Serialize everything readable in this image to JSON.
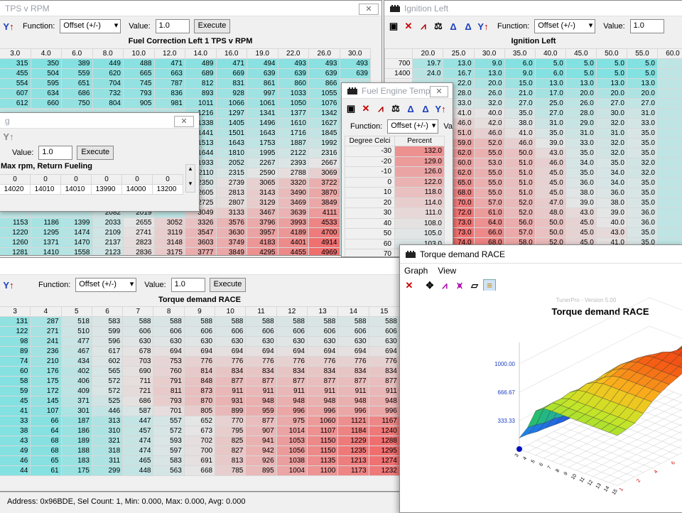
{
  "common": {
    "function_label": "Function:",
    "function_value": "Offset (+/-)",
    "value_label": "Value:",
    "value_value": "1.0",
    "execute": "Execute",
    "function_label_short": "Function:",
    "va_label": "Va"
  },
  "fuel_corr": {
    "window_title": "TPS v RPM",
    "map_title": "Fuel Correction Left 1 TPS v RPM",
    "cols": [
      "3.0",
      "4.0",
      "6.0",
      "8.0",
      "10.0",
      "12.0",
      "14.0",
      "16.0",
      "19.0",
      "22.0",
      "26.0",
      "30.0"
    ],
    "rows": [
      [
        "315",
        "350",
        "389",
        "449",
        "488",
        "471",
        "489",
        "471",
        "494",
        "493",
        "493",
        "493"
      ],
      [
        "455",
        "504",
        "559",
        "620",
        "665",
        "663",
        "689",
        "669",
        "639",
        "639",
        "639",
        "639"
      ],
      [
        "554",
        "595",
        "651",
        "704",
        "745",
        "787",
        "812",
        "831",
        "861",
        "860",
        "866",
        ""
      ],
      [
        "607",
        "634",
        "686",
        "732",
        "793",
        "836",
        "893",
        "928",
        "997",
        "1033",
        "1055",
        ""
      ],
      [
        "612",
        "660",
        "750",
        "804",
        "905",
        "981",
        "1011",
        "1066",
        "1061",
        "1050",
        "1076",
        ""
      ],
      [
        "",
        "",
        "",
        "",
        "",
        "",
        "1216",
        "1297",
        "1341",
        "1377",
        "1342",
        ""
      ],
      [
        "",
        "",
        "",
        "",
        "",
        "",
        "1338",
        "1405",
        "1496",
        "1610",
        "1627",
        ""
      ],
      [
        "",
        "",
        "",
        "",
        "",
        "",
        "1441",
        "1501",
        "1643",
        "1716",
        "1845",
        ""
      ],
      [
        "",
        "",
        "",
        "",
        "",
        "",
        "1513",
        "1643",
        "1753",
        "1887",
        "1992",
        ""
      ],
      [
        "",
        "",
        "",
        "",
        "",
        "",
        "1644",
        "1810",
        "1995",
        "2122",
        "2316",
        ""
      ],
      [
        "",
        "",
        "",
        "",
        "",
        "",
        "1933",
        "2052",
        "2267",
        "2393",
        "2667",
        ""
      ],
      [
        "",
        "",
        "",
        "",
        "",
        "",
        "2110",
        "2315",
        "2590",
        "2788",
        "3069",
        ""
      ],
      [
        "",
        "",
        "",
        "",
        "",
        "",
        "2350",
        "2739",
        "3065",
        "3320",
        "3722",
        ""
      ],
      [
        "",
        "",
        "",
        "",
        "",
        "",
        "2605",
        "2813",
        "3143",
        "3490",
        "3870",
        ""
      ],
      [
        "",
        "",
        "",
        "",
        "",
        "",
        "2725",
        "2807",
        "3129",
        "3469",
        "3849",
        ""
      ],
      [
        "",
        "",
        "",
        "2082",
        "2019",
        "",
        "3049",
        "3133",
        "3467",
        "3639",
        "4111",
        ""
      ],
      [
        "1153",
        "1186",
        "1399",
        "2033",
        "2655",
        "3052",
        "3326",
        "3576",
        "3796",
        "3993",
        "4533",
        ""
      ],
      [
        "1220",
        "1295",
        "1474",
        "2109",
        "2741",
        "3119",
        "3547",
        "3630",
        "3957",
        "4189",
        "4700",
        ""
      ],
      [
        "1260",
        "1371",
        "1470",
        "2137",
        "2823",
        "3148",
        "3603",
        "3749",
        "4183",
        "4401",
        "4914",
        ""
      ],
      [
        "1281",
        "1410",
        "1558",
        "2123",
        "2836",
        "3175",
        "3777",
        "3849",
        "4295",
        "4455",
        "4969",
        ""
      ]
    ]
  },
  "small_win": {
    "window_title": "g",
    "map_title": "Max rpm, Return Fueling",
    "header": [
      "0",
      "0",
      "0",
      "0",
      "0",
      "0"
    ],
    "values": [
      "14020",
      "14010",
      "14010",
      "13990",
      "14000",
      "13200"
    ]
  },
  "ign": {
    "window_title": "Ignition Left",
    "map_title": "Ignition Left",
    "cols": [
      "20.0",
      "25.0",
      "30.0",
      "35.0",
      "40.0",
      "45.0",
      "50.0",
      "55.0",
      "60.0"
    ],
    "rowlabels": [
      "700",
      "1400"
    ],
    "rows": [
      [
        "19.7",
        "13.0",
        "9.0",
        "6.0",
        "5.0",
        "5.0",
        "5.0",
        "5.0",
        ""
      ],
      [
        "24.0",
        "16.7",
        "13.0",
        "9.0",
        "6.0",
        "5.0",
        "5.0",
        "5.0",
        ""
      ],
      [
        "",
        "22.0",
        "20.0",
        "15.0",
        "13.0",
        "13.0",
        "13.0",
        "13.0",
        ""
      ],
      [
        "",
        "28.0",
        "26.0",
        "21.0",
        "17.0",
        "20.0",
        "20.0",
        "20.0",
        ""
      ],
      [
        "",
        "33.0",
        "32.0",
        "27.0",
        "25.0",
        "26.0",
        "27.0",
        "27.0",
        ""
      ],
      [
        "",
        "41.0",
        "40.0",
        "35.0",
        "27.0",
        "28.0",
        "30.0",
        "31.0",
        ""
      ],
      [
        "",
        "46.0",
        "42.0",
        "38.0",
        "31.0",
        "29.0",
        "32.0",
        "33.0",
        ""
      ],
      [
        "",
        "51.0",
        "46.0",
        "41.0",
        "35.0",
        "31.0",
        "31.0",
        "35.0",
        ""
      ],
      [
        "",
        "59.0",
        "52.0",
        "46.0",
        "39.0",
        "33.0",
        "32.0",
        "35.0",
        ""
      ],
      [
        "",
        "62.0",
        "55.0",
        "50.0",
        "43.0",
        "35.0",
        "32.0",
        "35.0",
        ""
      ],
      [
        "",
        "60.0",
        "53.0",
        "51.0",
        "46.0",
        "34.0",
        "35.0",
        "32.0",
        ""
      ],
      [
        "",
        "62.0",
        "55.0",
        "51.0",
        "45.0",
        "35.0",
        "34.0",
        "32.0",
        ""
      ],
      [
        "",
        "65.0",
        "55.0",
        "51.0",
        "45.0",
        "36.0",
        "34.0",
        "35.0",
        ""
      ],
      [
        "",
        "68.0",
        "55.0",
        "51.0",
        "45.0",
        "38.0",
        "36.0",
        "35.0",
        ""
      ],
      [
        "",
        "70.0",
        "57.0",
        "52.0",
        "47.0",
        "39.0",
        "38.0",
        "35.0",
        ""
      ],
      [
        "",
        "72.0",
        "61.0",
        "52.0",
        "48.0",
        "43.0",
        "39.0",
        "36.0",
        ""
      ],
      [
        "",
        "73.0",
        "64.0",
        "56.0",
        "50.0",
        "45.0",
        "40.0",
        "36.0",
        ""
      ],
      [
        "",
        "73.0",
        "66.0",
        "57.0",
        "50.0",
        "45.0",
        "43.0",
        "35.0",
        ""
      ],
      [
        "",
        "74.0",
        "68.0",
        "58.0",
        "52.0",
        "45.0",
        "41.0",
        "35.0",
        ""
      ],
      [
        "",
        "74.0",
        "69.0",
        "59.0",
        "54.0",
        "46.0",
        "41.0",
        "38.0",
        ""
      ]
    ]
  },
  "fuel_temp": {
    "window_title": "Fuel Engine Temp",
    "col1": "Degree Celci",
    "col2": "Percent",
    "rows": [
      [
        "-30",
        "132.0"
      ],
      [
        "-20",
        "129.0"
      ],
      [
        "-10",
        "126.0"
      ],
      [
        "0",
        "122.0"
      ],
      [
        "10",
        "118.0"
      ],
      [
        "20",
        "114.0"
      ],
      [
        "30",
        "111.0"
      ],
      [
        "40",
        "108.0"
      ],
      [
        "50",
        "105.0"
      ],
      [
        "60",
        "103.0"
      ],
      [
        "70",
        ""
      ]
    ]
  },
  "torque": {
    "map_title": "Torque demand RACE",
    "cols": [
      "3",
      "4",
      "5",
      "6",
      "7",
      "8",
      "9",
      "10",
      "11",
      "12",
      "13",
      "14",
      "15"
    ],
    "rows": [
      [
        "131",
        "287",
        "518",
        "583",
        "588",
        "588",
        "588",
        "588",
        "588",
        "588",
        "588",
        "588",
        "588"
      ],
      [
        "122",
        "271",
        "510",
        "599",
        "606",
        "606",
        "606",
        "606",
        "606",
        "606",
        "606",
        "606",
        "606"
      ],
      [
        "98",
        "241",
        "477",
        "596",
        "630",
        "630",
        "630",
        "630",
        "630",
        "630",
        "630",
        "630",
        "630"
      ],
      [
        "89",
        "236",
        "467",
        "617",
        "678",
        "694",
        "694",
        "694",
        "694",
        "694",
        "694",
        "694",
        "694"
      ],
      [
        "74",
        "210",
        "434",
        "602",
        "703",
        "753",
        "776",
        "776",
        "776",
        "776",
        "776",
        "776",
        "776"
      ],
      [
        "60",
        "176",
        "402",
        "565",
        "690",
        "760",
        "814",
        "834",
        "834",
        "834",
        "834",
        "834",
        "834"
      ],
      [
        "58",
        "175",
        "406",
        "572",
        "711",
        "791",
        "848",
        "877",
        "877",
        "877",
        "877",
        "877",
        "877"
      ],
      [
        "59",
        "172",
        "409",
        "572",
        "721",
        "811",
        "873",
        "911",
        "911",
        "911",
        "911",
        "911",
        "911"
      ],
      [
        "45",
        "145",
        "371",
        "525",
        "686",
        "793",
        "870",
        "931",
        "948",
        "948",
        "948",
        "948",
        "948"
      ],
      [
        "41",
        "107",
        "301",
        "446",
        "587",
        "701",
        "805",
        "899",
        "959",
        "996",
        "996",
        "996",
        "996"
      ],
      [
        "33",
        "66",
        "187",
        "313",
        "447",
        "557",
        "652",
        "770",
        "877",
        "975",
        "1060",
        "1121",
        "1167"
      ],
      [
        "38",
        "64",
        "186",
        "310",
        "457",
        "572",
        "673",
        "795",
        "907",
        "1014",
        "1107",
        "1184",
        "1240"
      ],
      [
        "43",
        "68",
        "189",
        "321",
        "474",
        "593",
        "702",
        "825",
        "941",
        "1053",
        "1150",
        "1229",
        "1288"
      ],
      [
        "49",
        "68",
        "188",
        "318",
        "474",
        "597",
        "700",
        "827",
        "942",
        "1056",
        "1150",
        "1235",
        "1295"
      ],
      [
        "46",
        "65",
        "183",
        "311",
        "465",
        "583",
        "691",
        "813",
        "926",
        "1038",
        "1135",
        "1213",
        "1274"
      ],
      [
        "44",
        "61",
        "175",
        "299",
        "448",
        "563",
        "668",
        "785",
        "895",
        "1004",
        "1100",
        "1173",
        "1232"
      ]
    ]
  },
  "graph": {
    "window_title": "Torque demand RACE",
    "menu_graph": "Graph",
    "menu_view": "View",
    "watermark": "TunerPro - Version 5.00",
    "title": "Torque demand RACE",
    "zlabels": [
      "1000.00",
      "666.67",
      "333.33"
    ],
    "xticks": [
      "3",
      "4",
      "5",
      "6",
      "7",
      "8",
      "9",
      "10",
      "11",
      "12",
      "13",
      "14",
      "15"
    ],
    "yticks": [
      "1",
      "2",
      "4",
      "6",
      "8",
      "10",
      "12",
      "14"
    ]
  },
  "status": {
    "text": "Address: 0x96BDE, Sel Count: 1, Min: 0.000, Max: 0.000, Avg: 0.000"
  }
}
